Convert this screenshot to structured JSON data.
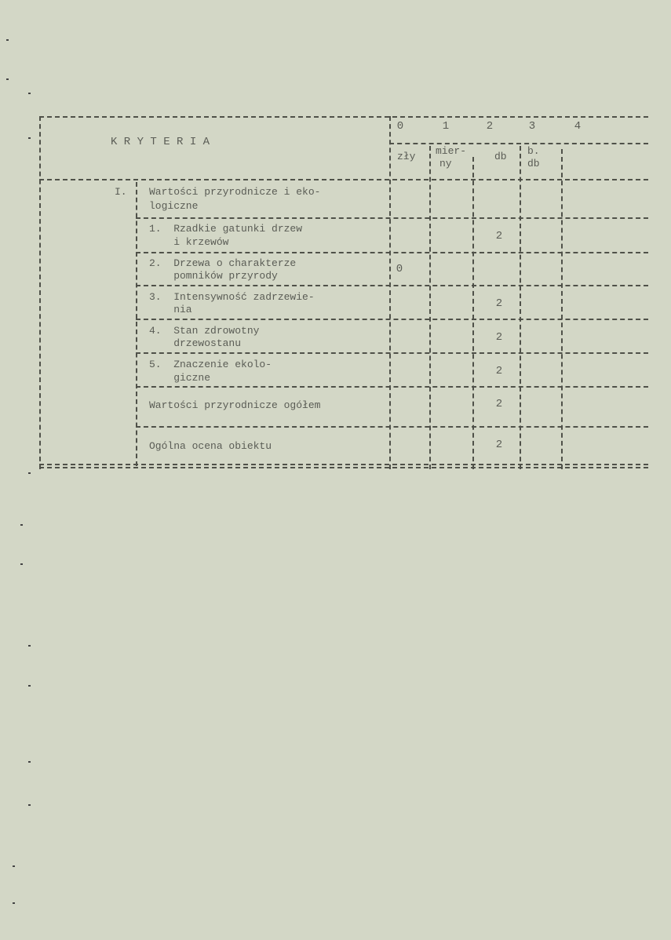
{
  "header": {
    "criteria_title": "K R Y T E R I A",
    "scale_numbers": [
      "0",
      "1",
      "2",
      "3",
      "4"
    ],
    "scale_labels": {
      "zly": "zły",
      "mierny_1": "mier-",
      "mierny_2": "ny",
      "db": "db",
      "bdb_1": "b.",
      "bdb_2": "db"
    }
  },
  "section": {
    "number": "I.",
    "title_1": "Wartości przyrodnicze i eko-",
    "title_2": "logiczne"
  },
  "rows": [
    {
      "l1": "1.  Rzadkie gatunki drzew",
      "l2": "    i krzewów",
      "score": "2",
      "col": 2
    },
    {
      "l1": "2.  Drzewa o charakterze",
      "l2": "    pomników przyrody",
      "score": "0",
      "col": 0
    },
    {
      "l1": "3.  Intensywność zadrzewie-",
      "l2": "    nia",
      "score": "2",
      "col": 2
    },
    {
      "l1": "4.  Stan zdrowotny",
      "l2": "    drzewostanu",
      "score": "2",
      "col": 2
    },
    {
      "l1": "5.  Znaczenie ekolo-",
      "l2": "    giczne",
      "score": "2",
      "col": 2
    }
  ],
  "total": {
    "label": "Wartości przyrodnicze ogółem",
    "score": "2"
  },
  "overall": {
    "label": "Ogólna ocena obiektu",
    "score": "2"
  }
}
